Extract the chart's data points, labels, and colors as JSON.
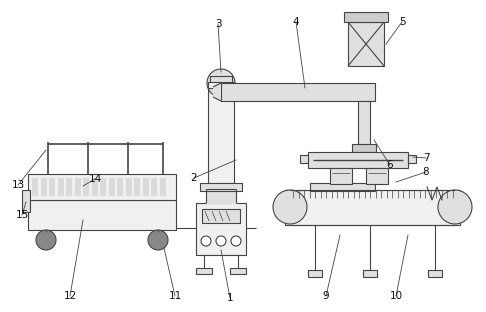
{
  "bg_color": "#ffffff",
  "lc": "#444444",
  "lc2": "#888888",
  "lw": 0.8,
  "fig_w": 4.86,
  "fig_h": 3.12,
  "dpi": 100
}
